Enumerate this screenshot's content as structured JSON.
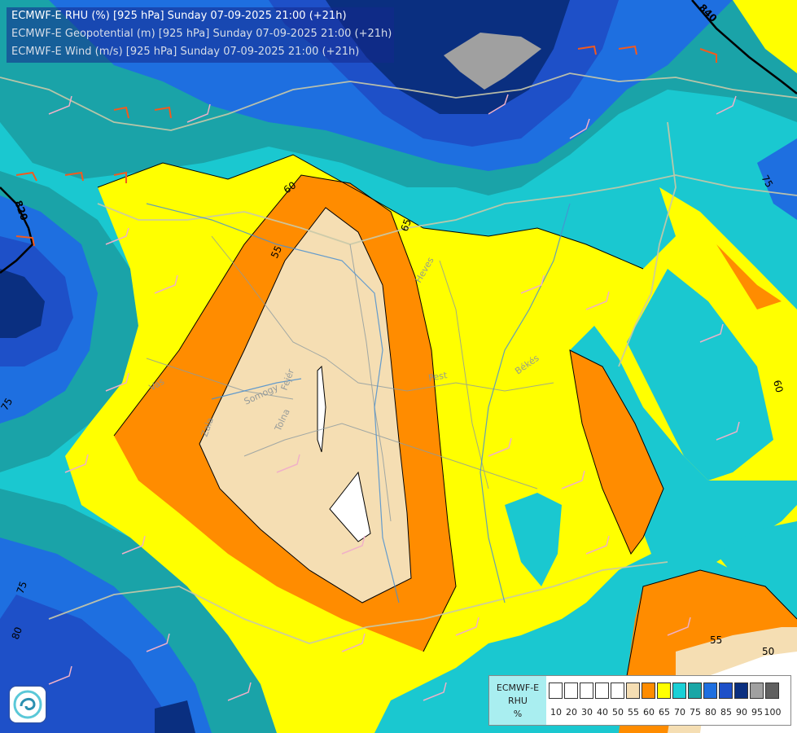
{
  "header": {
    "line1": "ECMWF-E RHU (%) [925 hPa] Sunday 07-09-2025 21:00 (+21h)",
    "line2": "ECMWF-E Geopotential (m) [925 hPa] Sunday 07-09-2025 21:00 (+21h)",
    "line3": "ECMWF-E Wind (m/s) [925 hPa] Sunday 07-09-2025 21:00 (+21h)"
  },
  "contour_labels": {
    "c60_top": "60",
    "c55_left": "55",
    "c65_mid": "65",
    "c60_right": "60",
    "c55_bottom": "55",
    "c50_bottom": "50",
    "c75_left": "75",
    "c75_bottomleft": "75",
    "c80_bottomleft": "80",
    "c75_topright": "75"
  },
  "geopotential_labels": {
    "g820": "820",
    "g840": "840"
  },
  "place_labels": {
    "heves": "Heves",
    "pest": "Pest",
    "bekes": "Békés",
    "somogy": "Somogy",
    "fejer": "Fejér",
    "tolna": "Tolna",
    "zala": "Zala",
    "vas": "Vas"
  },
  "legend": {
    "title_line1": "ECMWF-E",
    "title_line2": "RHU",
    "title_line3": "%",
    "colors": [
      "#ffffff",
      "#ffffff",
      "#ffffff",
      "#ffffff",
      "#ffffff",
      "#f5deb3",
      "#ff8c00",
      "#ffff00",
      "#1ad0d6",
      "#1aa6a6",
      "#1e6fe0",
      "#1e50c8",
      "#0a2f80",
      "#a0a0a0",
      "#606060"
    ],
    "ticks": [
      "10",
      "20",
      "30",
      "40",
      "50",
      "55",
      "60",
      "65",
      "70",
      "75",
      "80",
      "85",
      "90",
      "95",
      "100"
    ]
  }
}
